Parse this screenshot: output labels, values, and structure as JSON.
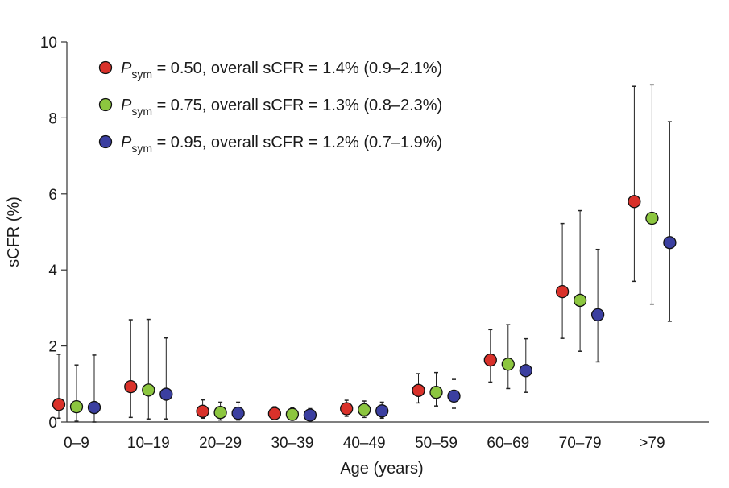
{
  "chart_data": {
    "type": "scatter",
    "xlabel": "Age (years)",
    "ylabel": "sCFR (%)",
    "ylim": [
      0,
      10
    ],
    "yticks": [
      0,
      2,
      4,
      6,
      8,
      10
    ],
    "categories": [
      "0–9",
      "10–19",
      "20–29",
      "30–39",
      "40–49",
      "50–59",
      "60–69",
      "70–79",
      ">79"
    ],
    "grid": false,
    "legend_position": "top-left",
    "series": [
      {
        "name_prefix": "P",
        "name_subscript": "sym",
        "name_suffix": " = 0.50, overall sCFR = 1.4% (0.9–2.1%)",
        "color": "#d9312a",
        "values": [
          0.46,
          0.93,
          0.28,
          0.22,
          0.35,
          0.83,
          1.63,
          3.43,
          5.8
        ],
        "lower": [
          0.1,
          0.12,
          0.1,
          0.08,
          0.15,
          0.5,
          1.05,
          2.2,
          3.7
        ],
        "upper": [
          1.78,
          2.69,
          0.58,
          0.4,
          0.57,
          1.27,
          2.43,
          5.22,
          8.83
        ]
      },
      {
        "name_prefix": "P",
        "name_subscript": "sym",
        "name_suffix": " = 0.75, overall sCFR = 1.3% (0.8–2.3%)",
        "color": "#8cc63f",
        "values": [
          0.4,
          0.84,
          0.25,
          0.2,
          0.32,
          0.78,
          1.52,
          3.2,
          5.36
        ],
        "lower": [
          0.02,
          0.08,
          0.05,
          0.06,
          0.12,
          0.42,
          0.88,
          1.86,
          3.1
        ],
        "upper": [
          1.5,
          2.7,
          0.52,
          0.37,
          0.55,
          1.3,
          2.56,
          5.56,
          8.87
        ]
      },
      {
        "name_prefix": "P",
        "name_subscript": "sym",
        "name_suffix": " = 0.95, overall sCFR = 1.2% (0.7–1.9%)",
        "color": "#3b3fa0",
        "values": [
          0.38,
          0.73,
          0.23,
          0.18,
          0.29,
          0.68,
          1.35,
          2.82,
          4.72
        ],
        "lower": [
          0.0,
          0.08,
          0.05,
          0.05,
          0.1,
          0.36,
          0.78,
          1.58,
          2.65
        ],
        "upper": [
          1.76,
          2.21,
          0.52,
          0.35,
          0.52,
          1.12,
          2.19,
          4.54,
          7.9
        ]
      }
    ]
  }
}
